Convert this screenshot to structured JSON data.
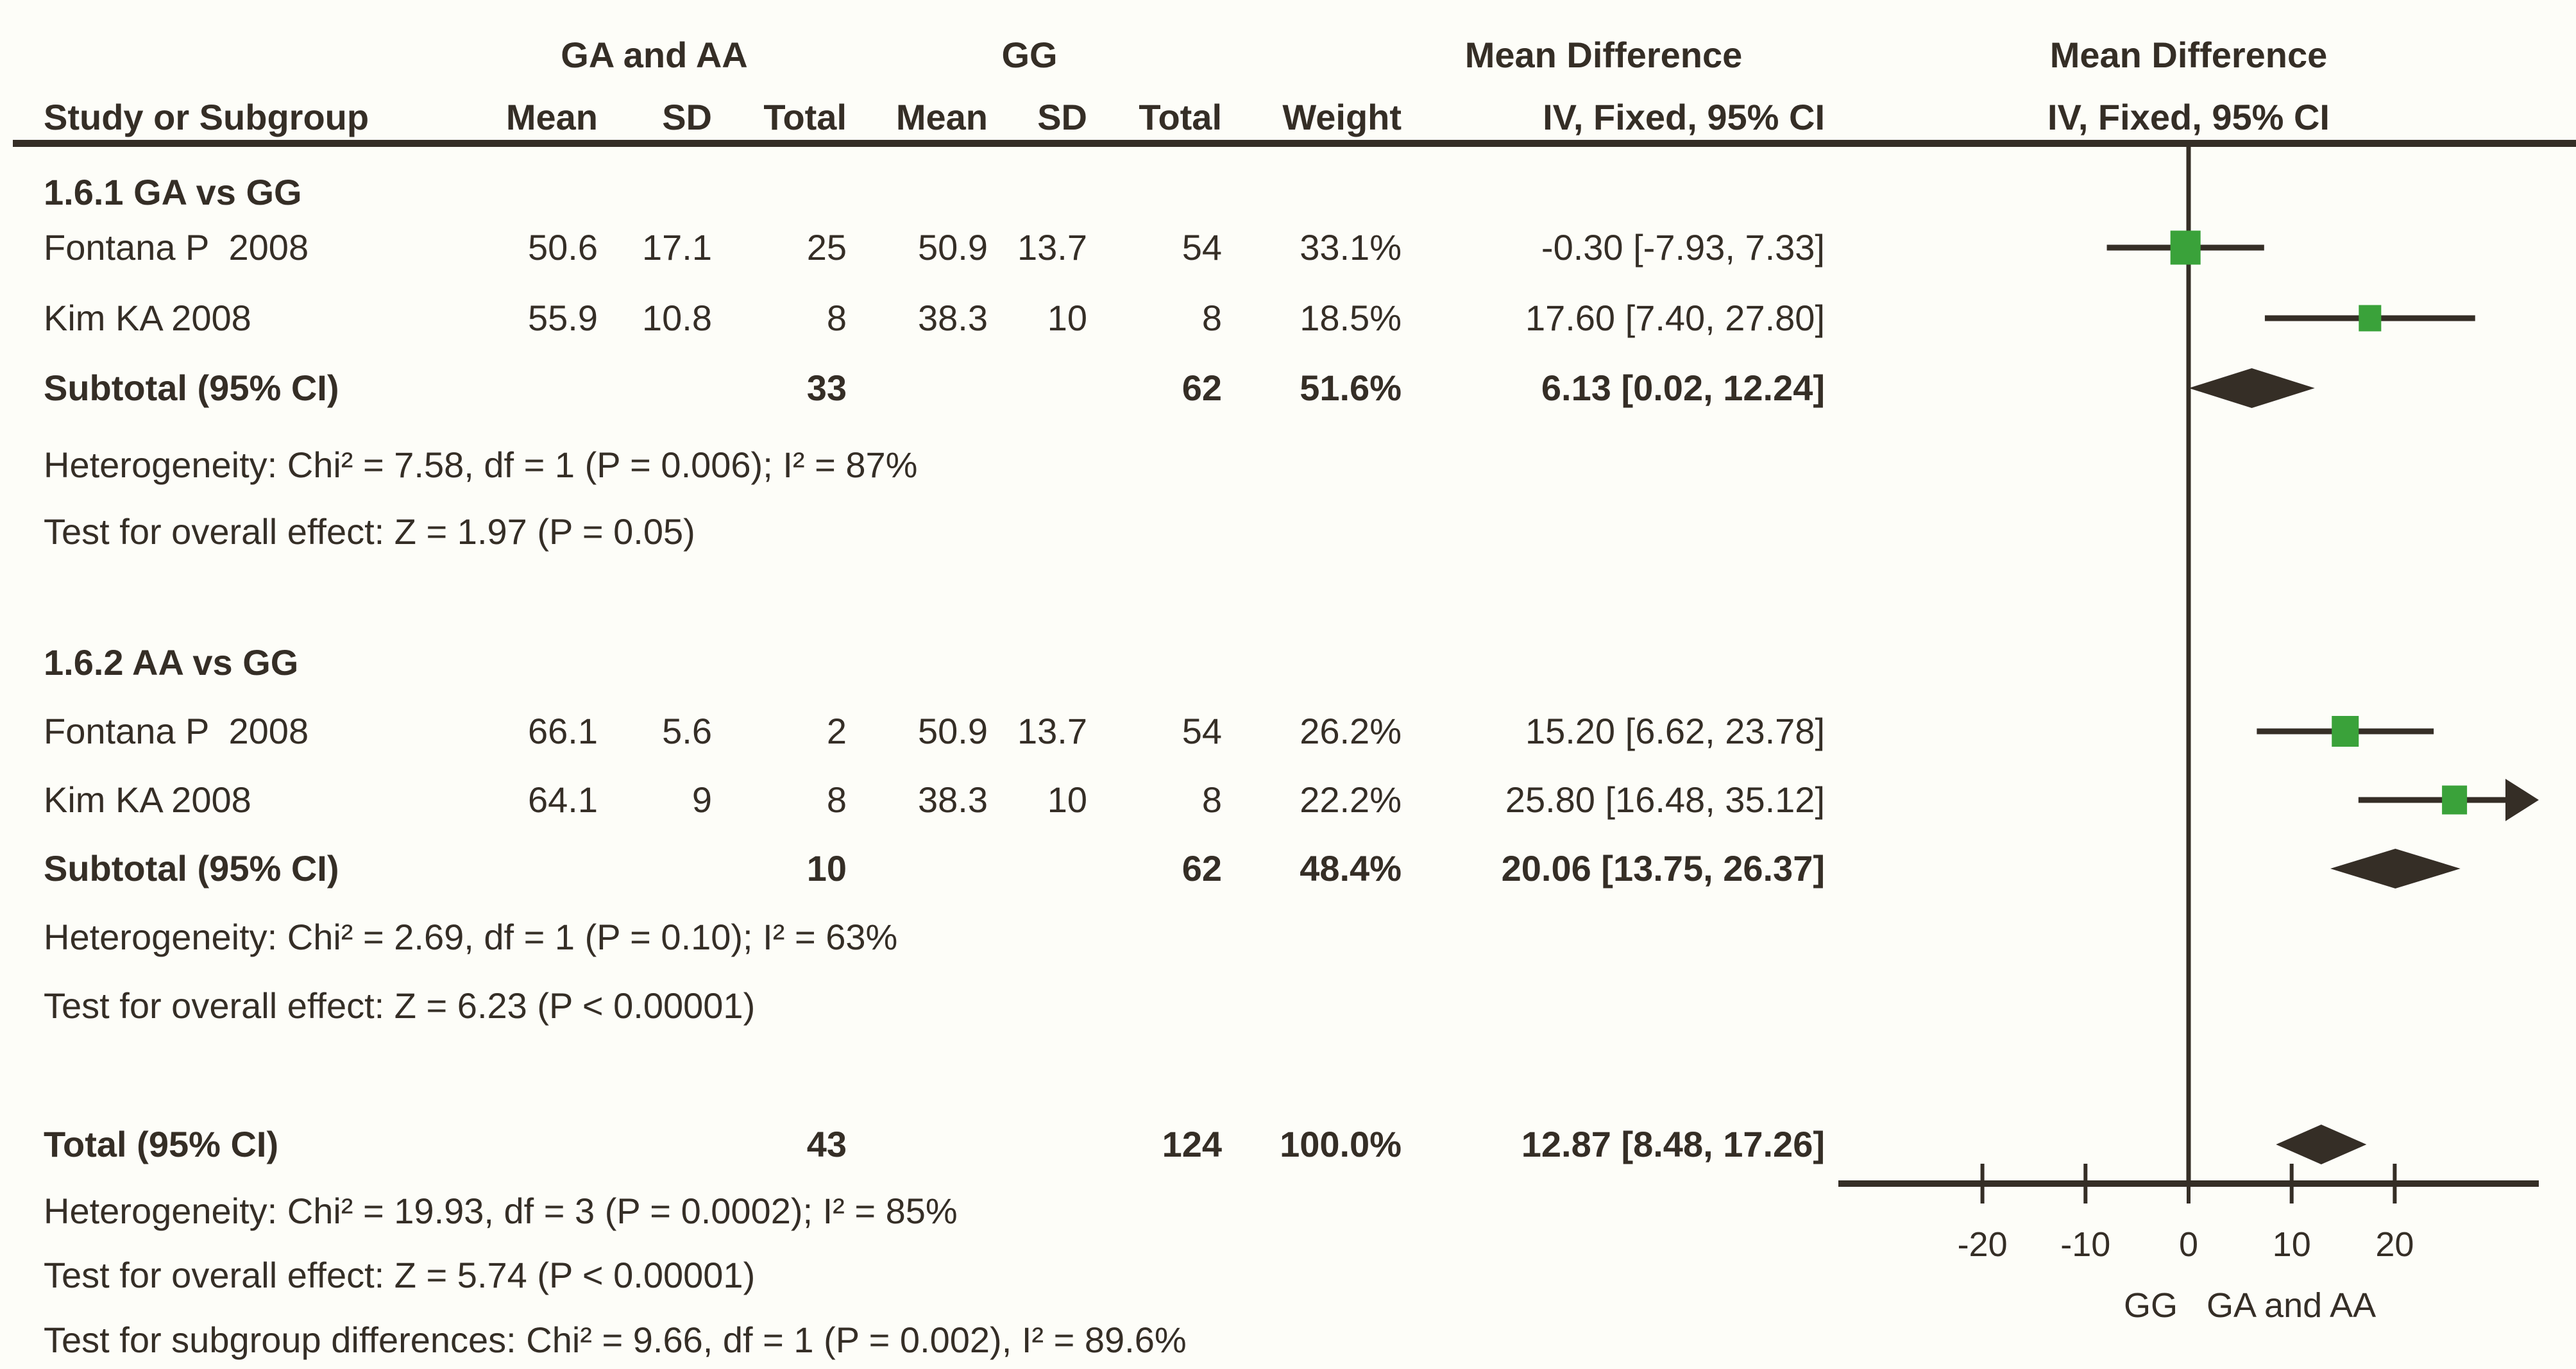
{
  "colors": {
    "background": "#fdfdf8",
    "ink": "#352e26",
    "marker_green": "#3aa23a"
  },
  "headers": {
    "group1": "GA and AA",
    "group2": "GG",
    "md_left": "Mean Difference",
    "md_right": "Mean Difference",
    "iv_left": "IV, Fixed, 95% CI",
    "iv_right": "IV, Fixed, 95% CI",
    "study": "Study or Subgroup",
    "mean": "Mean",
    "sd": "SD",
    "total": "Total",
    "weight": "Weight"
  },
  "chart_data": {
    "type": "forest",
    "title": "Mean Difference IV, Fixed, 95% CI",
    "axis": {
      "ticks": [
        -20,
        -10,
        0,
        10,
        20
      ],
      "min": -34,
      "max": 34,
      "favours_left": "GG",
      "favours_right": "GA and AA"
    },
    "subgroups": [
      {
        "label": "1.6.1 GA vs GG",
        "studies": [
          {
            "name": "Fontana P  2008",
            "mean1": "50.6",
            "sd1": "17.1",
            "total1": "25",
            "mean2": "50.9",
            "sd2": "13.7",
            "total2": "54",
            "weight": "33.1%",
            "ci_text": "-0.30 [-7.93, 7.33]",
            "md": -0.3,
            "lo": -7.93,
            "hi": 7.33,
            "w": 33.1
          },
          {
            "name": "Kim KA 2008",
            "mean1": "55.9",
            "sd1": "10.8",
            "total1": "8",
            "mean2": "38.3",
            "sd2": "10",
            "total2": "8",
            "weight": "18.5%",
            "ci_text": "17.60 [7.40, 27.80]",
            "md": 17.6,
            "lo": 7.4,
            "hi": 27.8,
            "w": 18.5
          }
        ],
        "subtotal": {
          "label": "Subtotal (95% CI)",
          "total1": "33",
          "total2": "62",
          "weight": "51.6%",
          "ci_text": "6.13 [0.02, 12.24]",
          "md": 6.13,
          "lo": 0.02,
          "hi": 12.24
        },
        "heterogeneity": "Heterogeneity: Chi² = 7.58, df = 1 (P = 0.006); I² = 87%",
        "overall_effect": "Test for overall effect: Z = 1.97 (P = 0.05)"
      },
      {
        "label": "1.6.2 AA vs GG",
        "studies": [
          {
            "name": "Fontana P  2008",
            "mean1": "66.1",
            "sd1": "5.6",
            "total1": "2",
            "mean2": "50.9",
            "sd2": "13.7",
            "total2": "54",
            "weight": "26.2%",
            "ci_text": "15.20 [6.62, 23.78]",
            "md": 15.2,
            "lo": 6.62,
            "hi": 23.78,
            "w": 26.2
          },
          {
            "name": "Kim KA 2008",
            "mean1": "64.1",
            "sd1": "9",
            "total1": "8",
            "mean2": "38.3",
            "sd2": "10",
            "total2": "8",
            "weight": "22.2%",
            "ci_text": "25.80 [16.48, 35.12]",
            "md": 25.8,
            "lo": 16.48,
            "hi": 35.12,
            "w": 22.2
          }
        ],
        "subtotal": {
          "label": "Subtotal (95% CI)",
          "total1": "10",
          "total2": "62",
          "weight": "48.4%",
          "ci_text": "20.06 [13.75, 26.37]",
          "md": 20.06,
          "lo": 13.75,
          "hi": 26.37
        },
        "heterogeneity": "Heterogeneity: Chi² = 2.69, df = 1 (P = 0.10); I² = 63%",
        "overall_effect": "Test for overall effect: Z = 6.23 (P < 0.00001)"
      }
    ],
    "total": {
      "label": "Total (95% CI)",
      "total1": "43",
      "total2": "124",
      "weight": "100.0%",
      "ci_text": "12.87 [8.48, 17.26]",
      "md": 12.87,
      "lo": 8.48,
      "hi": 17.26
    },
    "total_heterogeneity": "Heterogeneity: Chi² = 19.93, df = 3 (P = 0.0002); I² = 85%",
    "total_overall_effect": "Test for overall effect: Z = 5.74 (P < 0.00001)",
    "subgroup_differences": "Test for subgroup differences: Chi² = 9.66, df = 1 (P = 0.002), I² = 89.6%"
  }
}
